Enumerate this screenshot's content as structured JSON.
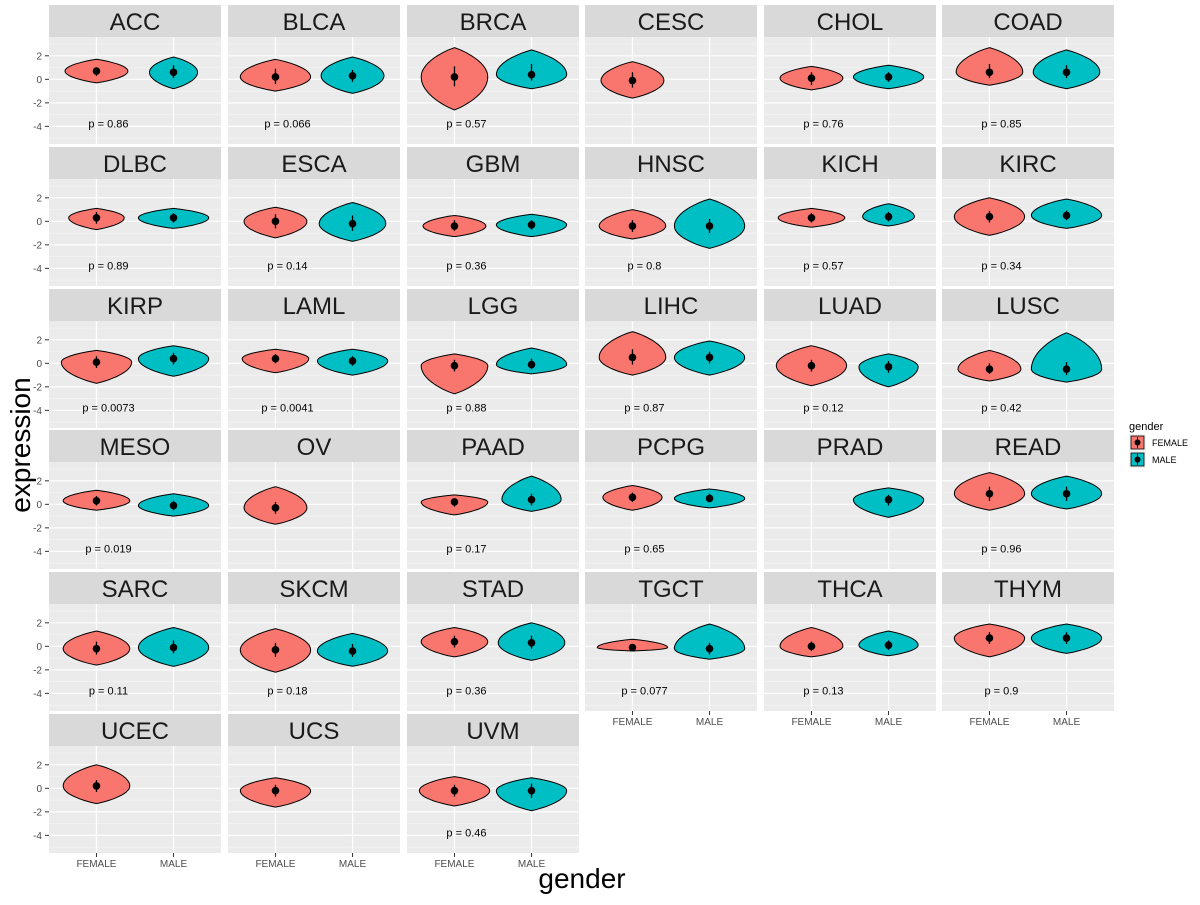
{
  "chart_data": {
    "type": "violin",
    "facet_layout": "6 columns x 6 rows",
    "xlabel": "gender",
    "ylabel": "expression",
    "categories": [
      "FEMALE",
      "MALE"
    ],
    "yticks": [
      2,
      0,
      -2,
      -4
    ],
    "ylim": [
      -5.5,
      3.6
    ],
    "legend": {
      "title": "gender",
      "position": "right",
      "entries": [
        {
          "label": "FEMALE",
          "color": "#F8766D"
        },
        {
          "label": "MALE",
          "color": "#00BFC4"
        }
      ]
    },
    "outline_color": "#000000",
    "facets": [
      {
        "name": "ACC",
        "pvalue": "p = 0.86",
        "female": {
          "min": -0.3,
          "max": 1.7,
          "median": 0.7,
          "lo": 0.3,
          "hi": 1.0,
          "w": 0.85
        },
        "male": {
          "min": -0.8,
          "max": 1.9,
          "median": 0.6,
          "lo": 0.1,
          "hi": 1.2,
          "w": 0.65
        }
      },
      {
        "name": "BLCA",
        "pvalue": "p = 0.066",
        "female": {
          "min": -1.0,
          "max": 1.7,
          "median": 0.2,
          "lo": -0.4,
          "hi": 0.9,
          "w": 0.95
        },
        "male": {
          "min": -1.2,
          "max": 1.9,
          "median": 0.3,
          "lo": -0.2,
          "hi": 0.8,
          "w": 0.85
        }
      },
      {
        "name": "BRCA",
        "pvalue": "p = 0.57",
        "female": {
          "min": -2.6,
          "max": 2.7,
          "median": 0.2,
          "lo": -0.6,
          "hi": 1.1,
          "w": 0.9
        },
        "male": {
          "min": -0.8,
          "max": 2.5,
          "median": 0.4,
          "lo": -0.1,
          "hi": 1.3,
          "w": 0.95
        }
      },
      {
        "name": "CESC",
        "pvalue": "",
        "female": {
          "min": -1.6,
          "max": 1.5,
          "median": -0.1,
          "lo": -0.7,
          "hi": 0.6,
          "w": 0.85
        },
        "male": null
      },
      {
        "name": "CHOL",
        "pvalue": "p = 0.76",
        "female": {
          "min": -0.9,
          "max": 1.1,
          "median": 0.1,
          "lo": -0.5,
          "hi": 0.6,
          "w": 0.85
        },
        "male": {
          "min": -0.8,
          "max": 1.2,
          "median": 0.2,
          "lo": -0.2,
          "hi": 0.6,
          "w": 0.95
        }
      },
      {
        "name": "COAD",
        "pvalue": "p = 0.85",
        "female": {
          "min": -0.5,
          "max": 2.7,
          "median": 0.6,
          "lo": 0.1,
          "hi": 1.3,
          "w": 0.9
        },
        "male": {
          "min": -0.8,
          "max": 2.5,
          "median": 0.6,
          "lo": 0.1,
          "hi": 1.2,
          "w": 0.9
        }
      },
      {
        "name": "DLBC",
        "pvalue": "p = 0.89",
        "female": {
          "min": -0.7,
          "max": 1.1,
          "median": 0.3,
          "lo": -0.2,
          "hi": 0.8,
          "w": 0.75
        },
        "male": {
          "min": -0.6,
          "max": 1.1,
          "median": 0.3,
          "lo": -0.1,
          "hi": 0.7,
          "w": 0.95
        }
      },
      {
        "name": "ESCA",
        "pvalue": "p = 0.14",
        "female": {
          "min": -1.4,
          "max": 1.2,
          "median": 0.0,
          "lo": -0.6,
          "hi": 0.6,
          "w": 0.85
        },
        "male": {
          "min": -1.7,
          "max": 1.6,
          "median": -0.2,
          "lo": -0.8,
          "hi": 0.5,
          "w": 0.9
        }
      },
      {
        "name": "GBM",
        "pvalue": "p = 0.36",
        "female": {
          "min": -1.3,
          "max": 0.5,
          "median": -0.4,
          "lo": -0.8,
          "hi": 0.1,
          "w": 0.85
        },
        "male": {
          "min": -1.3,
          "max": 0.6,
          "median": -0.3,
          "lo": -0.7,
          "hi": 0.1,
          "w": 0.95
        }
      },
      {
        "name": "HNSC",
        "pvalue": "p = 0.8",
        "female": {
          "min": -1.5,
          "max": 1.0,
          "median": -0.4,
          "lo": -0.9,
          "hi": 0.1,
          "w": 0.9
        },
        "male": {
          "min": -2.3,
          "max": 1.9,
          "median": -0.4,
          "lo": -1.0,
          "hi": 0.2,
          "w": 0.95
        }
      },
      {
        "name": "KICH",
        "pvalue": "p = 0.57",
        "female": {
          "min": -0.5,
          "max": 1.1,
          "median": 0.3,
          "lo": -0.1,
          "hi": 0.7,
          "w": 0.9
        },
        "male": {
          "min": -0.4,
          "max": 1.5,
          "median": 0.4,
          "lo": 0.0,
          "hi": 0.8,
          "w": 0.7
        }
      },
      {
        "name": "KIRC",
        "pvalue": "p = 0.34",
        "female": {
          "min": -1.2,
          "max": 2.0,
          "median": 0.4,
          "lo": -0.1,
          "hi": 0.9,
          "w": 0.95
        },
        "male": {
          "min": -0.6,
          "max": 1.9,
          "median": 0.5,
          "lo": 0.1,
          "hi": 0.9,
          "w": 0.95
        }
      },
      {
        "name": "KIRP",
        "pvalue": "p = 0.0073",
        "female": {
          "min": -1.7,
          "max": 1.1,
          "median": 0.1,
          "lo": -0.4,
          "hi": 0.6,
          "w": 0.95
        },
        "male": {
          "min": -1.1,
          "max": 1.5,
          "median": 0.4,
          "lo": -0.1,
          "hi": 0.9,
          "w": 0.95
        }
      },
      {
        "name": "LAML",
        "pvalue": "p = 0.0041",
        "female": {
          "min": -0.8,
          "max": 1.2,
          "median": 0.4,
          "lo": 0.0,
          "hi": 0.8,
          "w": 0.9
        },
        "male": {
          "min": -1.0,
          "max": 1.2,
          "median": 0.2,
          "lo": -0.2,
          "hi": 0.6,
          "w": 0.95
        }
      },
      {
        "name": "LGG",
        "pvalue": "p = 0.88",
        "female": {
          "min": -2.6,
          "max": 0.8,
          "median": -0.2,
          "lo": -0.7,
          "hi": 0.3,
          "w": 0.9
        },
        "male": {
          "min": -0.9,
          "max": 1.3,
          "median": -0.1,
          "lo": -0.5,
          "hi": 0.4,
          "w": 0.95
        }
      },
      {
        "name": "LIHC",
        "pvalue": "p = 0.87",
        "female": {
          "min": -1.0,
          "max": 2.7,
          "median": 0.5,
          "lo": -0.1,
          "hi": 1.2,
          "w": 0.9
        },
        "male": {
          "min": -1.0,
          "max": 1.9,
          "median": 0.5,
          "lo": 0.0,
          "hi": 1.0,
          "w": 0.95
        }
      },
      {
        "name": "LUAD",
        "pvalue": "p = 0.12",
        "female": {
          "min": -1.9,
          "max": 1.5,
          "median": -0.2,
          "lo": -0.7,
          "hi": 0.3,
          "w": 0.95
        },
        "male": {
          "min": -2.0,
          "max": 0.8,
          "median": -0.3,
          "lo": -0.8,
          "hi": 0.2,
          "w": 0.8
        }
      },
      {
        "name": "LUSC",
        "pvalue": "p = 0.42",
        "female": {
          "min": -1.5,
          "max": 1.1,
          "median": -0.5,
          "lo": -0.9,
          "hi": 0.0,
          "w": 0.85
        },
        "male": {
          "min": -1.6,
          "max": 2.6,
          "median": -0.5,
          "lo": -1.0,
          "hi": 0.1,
          "w": 0.95
        }
      },
      {
        "name": "MESO",
        "pvalue": "p = 0.019",
        "female": {
          "min": -0.5,
          "max": 1.2,
          "median": 0.3,
          "lo": -0.1,
          "hi": 0.7,
          "w": 0.9
        },
        "male": {
          "min": -1.0,
          "max": 0.9,
          "median": -0.1,
          "lo": -0.5,
          "hi": 0.3,
          "w": 0.95
        }
      },
      {
        "name": "OV",
        "pvalue": "",
        "female": {
          "min": -1.7,
          "max": 1.5,
          "median": -0.3,
          "lo": -0.8,
          "hi": 0.2,
          "w": 0.85
        },
        "male": null
      },
      {
        "name": "PAAD",
        "pvalue": "p = 0.17",
        "female": {
          "min": -0.9,
          "max": 0.8,
          "median": 0.2,
          "lo": -0.2,
          "hi": 0.5,
          "w": 0.9
        },
        "male": {
          "min": -0.6,
          "max": 2.4,
          "median": 0.4,
          "lo": -0.1,
          "hi": 0.9,
          "w": 0.8
        }
      },
      {
        "name": "PCPG",
        "pvalue": "p = 0.65",
        "female": {
          "min": -0.5,
          "max": 1.6,
          "median": 0.6,
          "lo": 0.2,
          "hi": 1.0,
          "w": 0.8
        },
        "male": {
          "min": -0.3,
          "max": 1.3,
          "median": 0.5,
          "lo": 0.2,
          "hi": 0.9,
          "w": 0.95
        }
      },
      {
        "name": "PRAD",
        "pvalue": "",
        "female": null,
        "male": {
          "min": -1.1,
          "max": 1.4,
          "median": 0.4,
          "lo": -0.1,
          "hi": 0.8,
          "w": 0.95
        }
      },
      {
        "name": "READ",
        "pvalue": "p = 0.96",
        "female": {
          "min": -0.5,
          "max": 2.7,
          "median": 0.9,
          "lo": 0.3,
          "hi": 1.5,
          "w": 0.95
        },
        "male": {
          "min": -0.4,
          "max": 2.4,
          "median": 0.9,
          "lo": 0.3,
          "hi": 1.5,
          "w": 0.95
        }
      },
      {
        "name": "SARC",
        "pvalue": "p = 0.11",
        "female": {
          "min": -1.6,
          "max": 1.3,
          "median": -0.2,
          "lo": -0.7,
          "hi": 0.4,
          "w": 0.9
        },
        "male": {
          "min": -1.7,
          "max": 1.6,
          "median": -0.1,
          "lo": -0.6,
          "hi": 0.5,
          "w": 0.95
        }
      },
      {
        "name": "SKCM",
        "pvalue": "p = 0.18",
        "female": {
          "min": -2.2,
          "max": 1.5,
          "median": -0.3,
          "lo": -0.9,
          "hi": 0.3,
          "w": 0.95
        },
        "male": {
          "min": -1.7,
          "max": 1.1,
          "median": -0.4,
          "lo": -0.9,
          "hi": 0.2,
          "w": 0.95
        }
      },
      {
        "name": "STAD",
        "pvalue": "p = 0.36",
        "female": {
          "min": -0.9,
          "max": 1.6,
          "median": 0.4,
          "lo": -0.1,
          "hi": 0.9,
          "w": 0.9
        },
        "male": {
          "min": -1.2,
          "max": 2.0,
          "median": 0.3,
          "lo": -0.2,
          "hi": 0.9,
          "w": 0.9
        }
      },
      {
        "name": "TGCT",
        "pvalue": "p = 0.077",
        "female": {
          "min": -0.4,
          "max": 0.6,
          "median": -0.1,
          "lo": -0.3,
          "hi": 0.2,
          "w": 0.95
        },
        "male": {
          "min": -1.1,
          "max": 1.9,
          "median": -0.2,
          "lo": -0.7,
          "hi": 0.3,
          "w": 0.95
        }
      },
      {
        "name": "THCA",
        "pvalue": "p = 0.13",
        "female": {
          "min": -0.9,
          "max": 1.6,
          "median": 0.0,
          "lo": -0.4,
          "hi": 0.4,
          "w": 0.85
        },
        "male": {
          "min": -0.8,
          "max": 1.3,
          "median": 0.1,
          "lo": -0.3,
          "hi": 0.5,
          "w": 0.8
        }
      },
      {
        "name": "THYM",
        "pvalue": "p = 0.9",
        "female": {
          "min": -0.9,
          "max": 1.9,
          "median": 0.7,
          "lo": 0.2,
          "hi": 1.2,
          "w": 0.95
        },
        "male": {
          "min": -0.6,
          "max": 1.9,
          "median": 0.7,
          "lo": 0.2,
          "hi": 1.2,
          "w": 0.95
        }
      },
      {
        "name": "UCEC",
        "pvalue": "",
        "female": {
          "min": -1.3,
          "max": 2.0,
          "median": 0.2,
          "lo": -0.3,
          "hi": 0.7,
          "w": 0.9
        },
        "male": null
      },
      {
        "name": "UCS",
        "pvalue": "",
        "female": {
          "min": -1.6,
          "max": 0.9,
          "median": -0.2,
          "lo": -0.7,
          "hi": 0.3,
          "w": 0.95
        },
        "male": null
      },
      {
        "name": "UVM",
        "pvalue": "p = 0.46",
        "female": {
          "min": -1.5,
          "max": 1.0,
          "median": -0.2,
          "lo": -0.7,
          "hi": 0.3,
          "w": 0.95
        },
        "male": {
          "min": -1.9,
          "max": 0.9,
          "median": -0.2,
          "lo": -0.8,
          "hi": 0.4,
          "w": 0.95
        }
      }
    ]
  }
}
